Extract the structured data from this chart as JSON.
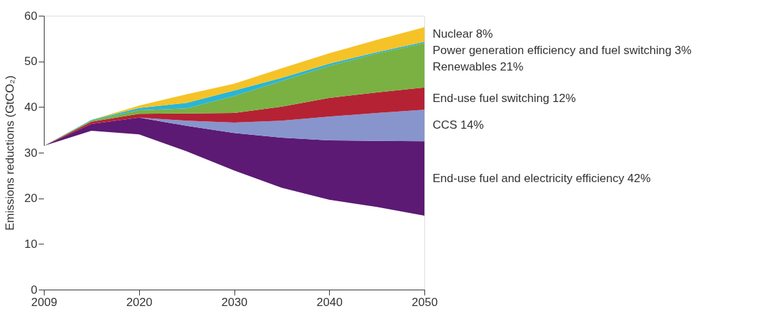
{
  "chart_data": {
    "type": "area",
    "stacked": true,
    "ylabel": "Emissions reductions (GtCO₂)",
    "categories": [
      "2009",
      null,
      "2020",
      null,
      "2030",
      null,
      "2040",
      null,
      "2050"
    ],
    "series": [
      {
        "color": "#ffffff",
        "values": [
          31.5,
          34.8,
          34.0,
          30.3,
          26.1,
          22.3,
          19.7,
          18.1,
          16.2
        ]
      },
      {
        "name": "End-use fuel and electricity efficiency 42%",
        "color": "#5c1a74",
        "values": [
          0,
          1.5,
          3.7,
          5.6,
          8.2,
          11.0,
          13.0,
          14.5,
          16.3
        ]
      },
      {
        "name": "CCS 14%",
        "color": "#8795cc",
        "values": [
          0,
          0,
          0,
          1.1,
          2.3,
          3.7,
          5.2,
          6.1,
          6.9
        ]
      },
      {
        "name": "End-use fuel switching 12%",
        "color": "#b52234",
        "values": [
          0,
          0.5,
          0.8,
          1.6,
          2.1,
          3.1,
          4.1,
          4.5,
          4.9
        ]
      },
      {
        "name": "Renewables 21%",
        "color": "#7ab142",
        "values": [
          0,
          0.3,
          0.8,
          1.1,
          3.7,
          5.6,
          7.0,
          8.5,
          9.7
        ]
      },
      {
        "name": "Power generation efficiency and fuel switching 3%",
        "color": "#2ab5d6",
        "values": [
          0,
          0.1,
          0.5,
          1.2,
          1.2,
          0.7,
          0.5,
          0.3,
          0.3
        ]
      },
      {
        "name": "Nuclear 8%",
        "color": "#f5c327",
        "values": [
          0,
          0,
          0.5,
          1.9,
          1.5,
          2.1,
          2.3,
          2.7,
          3.2
        ]
      }
    ],
    "ylim": [
      0,
      60
    ],
    "yticks": [
      0,
      10,
      20,
      30,
      40,
      50,
      60
    ],
    "grid": false
  }
}
